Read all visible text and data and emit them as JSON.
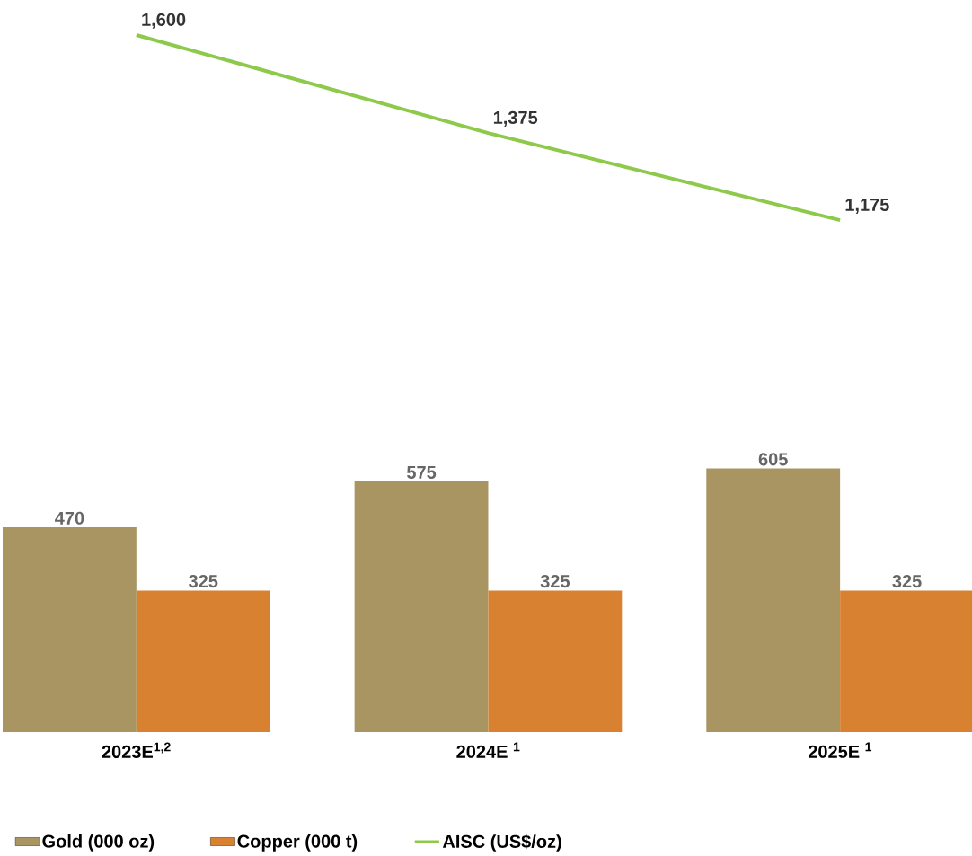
{
  "chart_data": {
    "type": "bar",
    "categories": [
      "2023E$^{1,2}$",
      "2024E $^{1}$",
      "2025E $^{1}$"
    ],
    "series": [
      {
        "name": "Gold (000 oz)",
        "color": "#a99562",
        "values": [
          470,
          575,
          605
        ],
        "value_labels": [
          "470",
          "575",
          "605"
        ]
      },
      {
        "name": "Copper (000 t)",
        "color": "#d88231",
        "values": [
          325,
          325,
          325
        ],
        "value_labels": [
          "325",
          "325",
          "325"
        ]
      },
      {
        "name": "AISC (US$/oz)",
        "type": "line",
        "color": "#8dc94a",
        "values": [
          1600,
          1375,
          1175
        ],
        "value_labels": [
          "1,600",
          "1,375",
          "1,175"
        ]
      }
    ],
    "tick_labels": "x",
    "legend": "bottom"
  }
}
